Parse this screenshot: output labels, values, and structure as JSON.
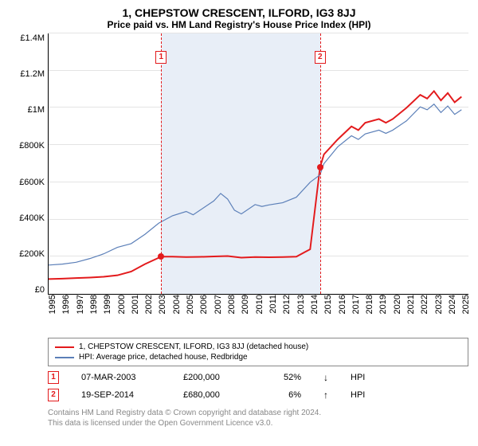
{
  "title": "1, CHEPSTOW CRESCENT, ILFORD, IG3 8JJ",
  "subtitle": "Price paid vs. HM Land Registry's House Price Index (HPI)",
  "chart": {
    "type": "line",
    "ylim": [
      0,
      1400000
    ],
    "ytick_step": 200000,
    "yticks": [
      "£0",
      "£200K",
      "£400K",
      "£600K",
      "£800K",
      "£1M",
      "£1.2M",
      "£1.4M"
    ],
    "xrange": [
      1995,
      2025.5
    ],
    "xticks": [
      "1995",
      "1996",
      "1997",
      "1998",
      "1999",
      "2000",
      "2001",
      "2002",
      "2003",
      "2004",
      "2005",
      "2006",
      "2007",
      "2008",
      "2009",
      "2010",
      "2011",
      "2012",
      "2013",
      "2014",
      "2015",
      "2016",
      "2017",
      "2018",
      "2019",
      "2020",
      "2021",
      "2022",
      "2023",
      "2024",
      "2025"
    ],
    "background_color": "#ffffff",
    "grid_color": "#e4e4e4",
    "band_color": "#e8eef7",
    "band_start": 2003.18,
    "band_end": 2014.72,
    "series": [
      {
        "name": "price_paid",
        "color": "#e31a1c",
        "width": 2,
        "label": "1, CHEPSTOW CRESCENT, ILFORD, IG3 8JJ (detached house)",
        "points": [
          [
            1995,
            80000
          ],
          [
            1996,
            82000
          ],
          [
            1997,
            85000
          ],
          [
            1998,
            88000
          ],
          [
            1999,
            92000
          ],
          [
            2000,
            100000
          ],
          [
            2001,
            120000
          ],
          [
            2002,
            160000
          ],
          [
            2003.18,
            200000
          ],
          [
            2004,
            200000
          ],
          [
            2005,
            198000
          ],
          [
            2006,
            199000
          ],
          [
            2007,
            201000
          ],
          [
            2008,
            203000
          ],
          [
            2009,
            195000
          ],
          [
            2010,
            198000
          ],
          [
            2011,
            197000
          ],
          [
            2012,
            198000
          ],
          [
            2013,
            200000
          ],
          [
            2014,
            240000
          ],
          [
            2014.72,
            680000
          ],
          [
            2015,
            750000
          ],
          [
            2016,
            830000
          ],
          [
            2017,
            900000
          ],
          [
            2017.5,
            880000
          ],
          [
            2018,
            920000
          ],
          [
            2019,
            940000
          ],
          [
            2019.5,
            920000
          ],
          [
            2020,
            940000
          ],
          [
            2021,
            1000000
          ],
          [
            2022,
            1070000
          ],
          [
            2022.5,
            1050000
          ],
          [
            2023,
            1090000
          ],
          [
            2023.5,
            1040000
          ],
          [
            2024,
            1080000
          ],
          [
            2024.5,
            1030000
          ],
          [
            2025,
            1060000
          ]
        ]
      },
      {
        "name": "hpi",
        "color": "#5b7fb8",
        "width": 1.2,
        "label": "HPI: Average price, detached house, Redbridge",
        "points": [
          [
            1995,
            155000
          ],
          [
            1996,
            160000
          ],
          [
            1997,
            170000
          ],
          [
            1998,
            190000
          ],
          [
            1999,
            215000
          ],
          [
            2000,
            250000
          ],
          [
            2001,
            270000
          ],
          [
            2002,
            320000
          ],
          [
            2003,
            380000
          ],
          [
            2004,
            420000
          ],
          [
            2005,
            443000
          ],
          [
            2005.5,
            425000
          ],
          [
            2006,
            450000
          ],
          [
            2007,
            500000
          ],
          [
            2007.5,
            540000
          ],
          [
            2008,
            510000
          ],
          [
            2008.5,
            450000
          ],
          [
            2009,
            430000
          ],
          [
            2010,
            480000
          ],
          [
            2010.5,
            470000
          ],
          [
            2011,
            478000
          ],
          [
            2012,
            490000
          ],
          [
            2013,
            520000
          ],
          [
            2014,
            600000
          ],
          [
            2014.72,
            640000
          ],
          [
            2015,
            700000
          ],
          [
            2016,
            790000
          ],
          [
            2017,
            850000
          ],
          [
            2017.5,
            830000
          ],
          [
            2018,
            860000
          ],
          [
            2019,
            880000
          ],
          [
            2019.5,
            863000
          ],
          [
            2020,
            880000
          ],
          [
            2021,
            930000
          ],
          [
            2022,
            1005000
          ],
          [
            2022.5,
            990000
          ],
          [
            2023,
            1020000
          ],
          [
            2023.5,
            975000
          ],
          [
            2024,
            1010000
          ],
          [
            2024.5,
            965000
          ],
          [
            2025,
            990000
          ]
        ]
      }
    ],
    "markers": [
      {
        "idx": 1,
        "x": 2003.18,
        "y": 200000
      },
      {
        "idx": 2,
        "x": 2014.72,
        "y": 680000
      }
    ]
  },
  "legend": {
    "items": [
      {
        "color": "#e31a1c",
        "label": "1, CHEPSTOW CRESCENT, ILFORD, IG3 8JJ (detached house)"
      },
      {
        "color": "#5b7fb8",
        "label": "HPI: Average price, detached house, Redbridge"
      }
    ]
  },
  "transactions": [
    {
      "idx": "1",
      "date": "07-MAR-2003",
      "price": "£200,000",
      "pct": "52%",
      "arrow": "↓",
      "ref": "HPI"
    },
    {
      "idx": "2",
      "date": "19-SEP-2014",
      "price": "£680,000",
      "pct": "6%",
      "arrow": "↑",
      "ref": "HPI"
    }
  ],
  "footer_line1": "Contains HM Land Registry data © Crown copyright and database right 2024.",
  "footer_line2": "This data is licensed under the Open Government Licence v3.0."
}
